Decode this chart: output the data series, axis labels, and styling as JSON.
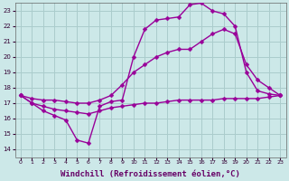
{
  "bg_color": "#cce8e8",
  "grid_color": "#aacccc",
  "line_color": "#990099",
  "line_width": 1.0,
  "marker": "D",
  "marker_size": 2.5,
  "xlabel": "Windchill (Refroidissement éolien,°C)",
  "xlabel_fontsize": 6.5,
  "xlim": [
    -0.5,
    23.5
  ],
  "ylim": [
    13.5,
    23.5
  ],
  "xticks": [
    0,
    1,
    2,
    3,
    4,
    5,
    6,
    7,
    8,
    9,
    10,
    11,
    12,
    13,
    14,
    15,
    16,
    17,
    18,
    19,
    20,
    21,
    22,
    23
  ],
  "yticks": [
    14,
    15,
    16,
    17,
    18,
    19,
    20,
    21,
    22,
    23
  ],
  "curve1_y": [
    17.5,
    17.0,
    16.5,
    16.2,
    15.9,
    14.6,
    14.4,
    16.8,
    17.1,
    17.2,
    20.0,
    21.8,
    22.4,
    22.5,
    22.6,
    23.4,
    23.5,
    23.0,
    22.8,
    22.0,
    19.0,
    17.8,
    17.6,
    17.5
  ],
  "curve2_y": [
    17.5,
    17.3,
    17.2,
    17.2,
    17.1,
    17.0,
    17.0,
    17.2,
    17.5,
    18.2,
    19.0,
    19.5,
    20.0,
    20.3,
    20.5,
    20.5,
    21.0,
    21.5,
    21.8,
    21.5,
    19.5,
    18.5,
    18.0,
    17.5
  ],
  "curve3_y": [
    17.5,
    17.0,
    16.8,
    16.6,
    16.5,
    16.4,
    16.3,
    16.5,
    16.7,
    16.8,
    16.9,
    17.0,
    17.0,
    17.1,
    17.2,
    17.2,
    17.2,
    17.2,
    17.3,
    17.3,
    17.3,
    17.3,
    17.4,
    17.5
  ]
}
